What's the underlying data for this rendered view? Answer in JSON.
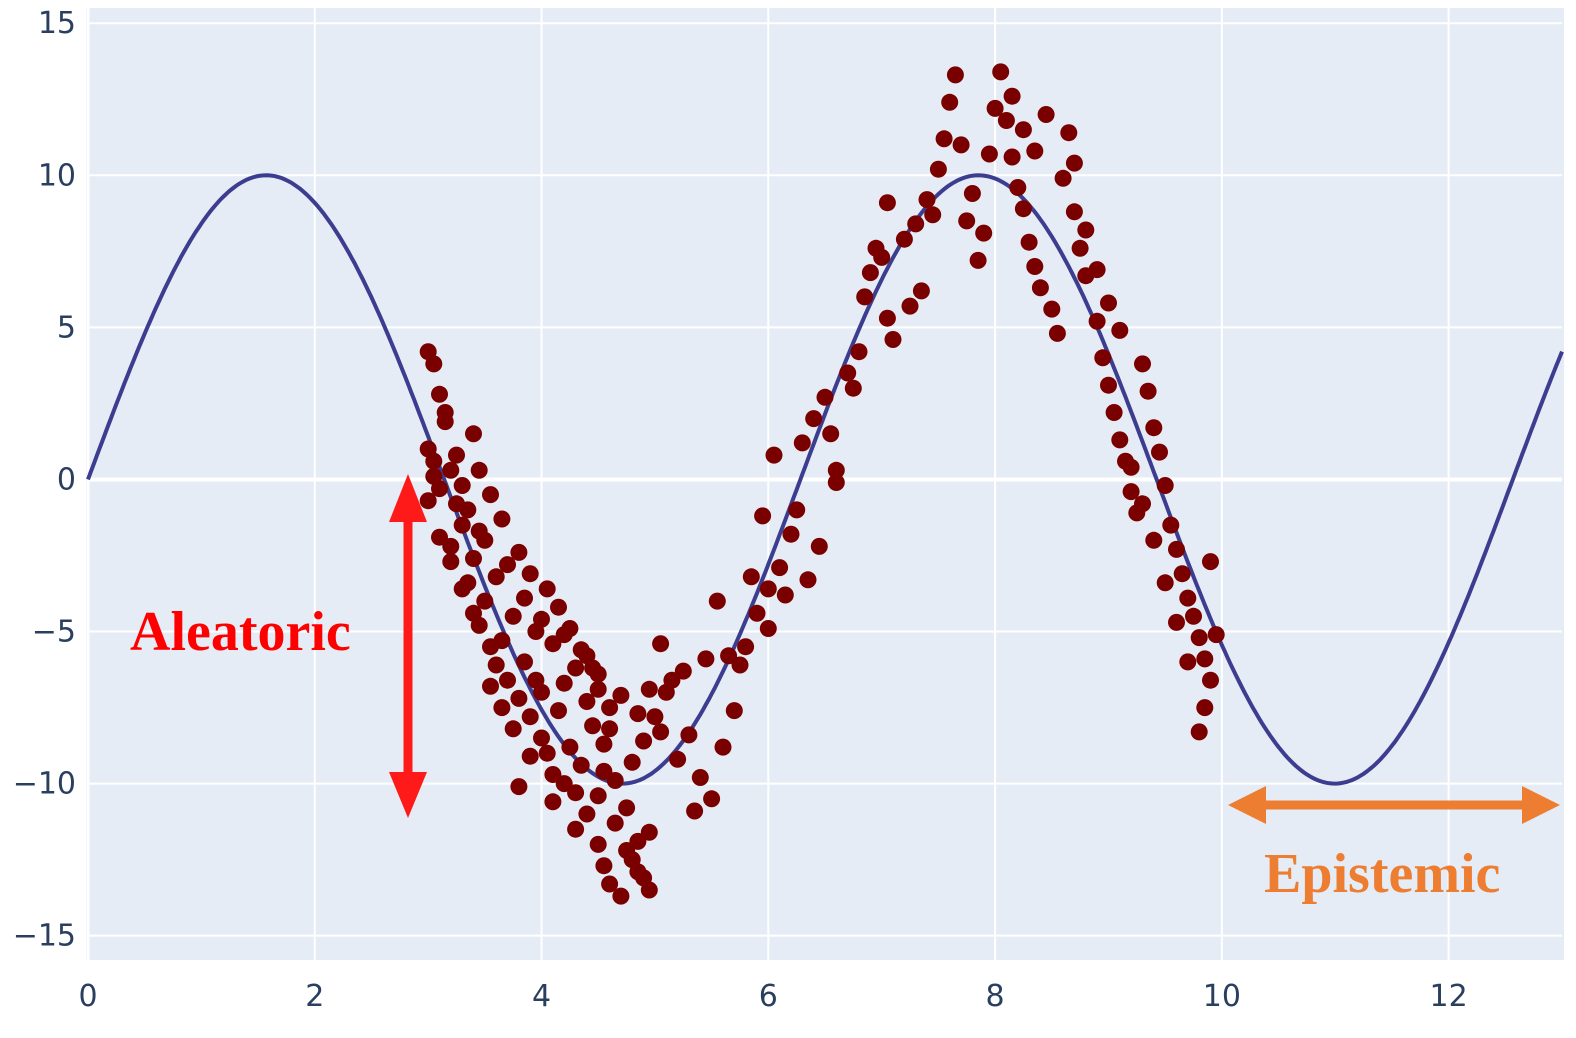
{
  "chart_data": {
    "type": "scatter",
    "title": "",
    "xlabel": "",
    "ylabel": "",
    "xlim": [
      0,
      13
    ],
    "ylim": [
      -15.8,
      15.5
    ],
    "x_ticks": [
      0,
      2,
      4,
      6,
      8,
      10,
      12
    ],
    "y_ticks": [
      15,
      10,
      5,
      0,
      -5,
      -10,
      -15
    ],
    "x_tick_labels": [
      "0",
      "2",
      "4",
      "6",
      "8",
      "10",
      "12"
    ],
    "y_tick_labels": [
      "15",
      "10",
      "5",
      "0",
      "−5",
      "−10",
      "−15"
    ],
    "grid": true,
    "legend": "none",
    "curve": {
      "function": "10*sin(x)",
      "x_range": [
        0,
        13
      ],
      "color": "#3d3d8f"
    },
    "scatter": {
      "color": "#7a0000",
      "x_range": [
        3,
        10
      ],
      "points": [
        [
          3.0,
          4.2
        ],
        [
          3.05,
          3.8
        ],
        [
          3.1,
          2.8
        ],
        [
          3.15,
          1.9
        ],
        [
          3.0,
          1.0
        ],
        [
          3.05,
          0.6
        ],
        [
          3.2,
          0.3
        ],
        [
          3.1,
          -0.3
        ],
        [
          3.25,
          -0.8
        ],
        [
          3.3,
          -1.5
        ],
        [
          3.2,
          -2.2
        ],
        [
          3.4,
          -2.6
        ],
        [
          3.35,
          -3.4
        ],
        [
          3.5,
          -4.0
        ],
        [
          3.45,
          -4.8
        ],
        [
          3.55,
          -5.5
        ],
        [
          3.6,
          -6.1
        ],
        [
          3.7,
          -6.6
        ],
        [
          3.8,
          -7.2
        ],
        [
          3.65,
          -7.5
        ],
        [
          3.9,
          -7.8
        ],
        [
          4.0,
          -8.5
        ],
        [
          4.05,
          -9.0
        ],
        [
          4.1,
          -9.7
        ],
        [
          4.2,
          -10.0
        ],
        [
          4.3,
          -10.3
        ],
        [
          4.4,
          -11.0
        ],
        [
          4.5,
          -12.0
        ],
        [
          4.55,
          -12.7
        ],
        [
          4.6,
          -13.3
        ],
        [
          4.7,
          -13.7
        ],
        [
          4.8,
          -12.5
        ],
        [
          4.9,
          -13.1
        ],
        [
          4.95,
          -13.5
        ],
        [
          4.85,
          -11.9
        ],
        [
          4.75,
          -10.8
        ],
        [
          4.65,
          -9.9
        ],
        [
          4.8,
          -9.3
        ],
        [
          4.9,
          -8.6
        ],
        [
          5.0,
          -7.8
        ],
        [
          5.1,
          -7.0
        ],
        [
          4.6,
          -7.5
        ],
        [
          4.5,
          -6.9
        ],
        [
          4.3,
          -6.2
        ],
        [
          4.1,
          -5.4
        ],
        [
          3.95,
          -5.0
        ],
        [
          3.75,
          -4.5
        ],
        [
          3.6,
          -3.2
        ],
        [
          3.5,
          -2.0
        ],
        [
          3.35,
          -1.0
        ],
        [
          3.25,
          0.8
        ],
        [
          3.4,
          1.5
        ],
        [
          3.15,
          2.2
        ],
        [
          3.3,
          -0.2
        ],
        [
          3.45,
          -1.7
        ],
        [
          3.7,
          -2.8
        ],
        [
          3.85,
          -3.9
        ],
        [
          4.0,
          -4.6
        ],
        [
          4.2,
          -5.1
        ],
        [
          4.4,
          -5.8
        ],
        [
          4.5,
          -6.4
        ],
        [
          4.7,
          -7.1
        ],
        [
          4.85,
          -7.7
        ],
        [
          5.05,
          -8.3
        ],
        [
          5.2,
          -9.2
        ],
        [
          5.3,
          -8.4
        ],
        [
          5.4,
          -9.8
        ],
        [
          5.5,
          -10.5
        ],
        [
          5.35,
          -10.9
        ],
        [
          5.6,
          -8.8
        ],
        [
          5.7,
          -7.6
        ],
        [
          5.8,
          -5.5
        ],
        [
          5.9,
          -4.4
        ],
        [
          6.0,
          -3.6
        ],
        [
          6.1,
          -2.9
        ],
        [
          6.2,
          -1.8
        ],
        [
          6.05,
          0.8
        ],
        [
          5.95,
          -1.2
        ],
        [
          6.3,
          1.2
        ],
        [
          6.4,
          2.0
        ],
        [
          6.5,
          2.7
        ],
        [
          6.55,
          1.5
        ],
        [
          6.6,
          0.3
        ],
        [
          6.7,
          3.5
        ],
        [
          6.8,
          4.2
        ],
        [
          6.85,
          6.0
        ],
        [
          6.9,
          6.8
        ],
        [
          7.0,
          7.3
        ],
        [
          7.05,
          5.3
        ],
        [
          7.1,
          4.6
        ],
        [
          7.2,
          7.9
        ],
        [
          7.3,
          8.4
        ],
        [
          7.4,
          9.2
        ],
        [
          7.5,
          10.2
        ],
        [
          7.55,
          11.2
        ],
        [
          7.6,
          12.4
        ],
        [
          7.65,
          13.3
        ],
        [
          7.7,
          11.0
        ],
        [
          7.45,
          8.7
        ],
        [
          7.35,
          6.2
        ],
        [
          7.25,
          5.7
        ],
        [
          7.8,
          9.4
        ],
        [
          7.9,
          8.1
        ],
        [
          8.0,
          12.2
        ],
        [
          8.05,
          13.4
        ],
        [
          8.1,
          11.8
        ],
        [
          8.15,
          10.6
        ],
        [
          8.2,
          9.6
        ],
        [
          8.25,
          8.9
        ],
        [
          8.3,
          7.8
        ],
        [
          8.35,
          7.0
        ],
        [
          8.4,
          6.3
        ],
        [
          8.5,
          5.6
        ],
        [
          8.55,
          4.8
        ],
        [
          8.6,
          9.9
        ],
        [
          8.7,
          8.8
        ],
        [
          8.75,
          7.6
        ],
        [
          8.8,
          6.7
        ],
        [
          8.9,
          5.2
        ],
        [
          8.95,
          4.0
        ],
        [
          9.0,
          3.1
        ],
        [
          9.05,
          2.2
        ],
        [
          9.1,
          1.3
        ],
        [
          9.15,
          0.6
        ],
        [
          9.2,
          -0.4
        ],
        [
          9.25,
          -1.1
        ],
        [
          9.3,
          3.8
        ],
        [
          9.35,
          2.9
        ],
        [
          9.4,
          1.7
        ],
        [
          9.45,
          0.9
        ],
        [
          9.5,
          -0.2
        ],
        [
          9.55,
          -1.5
        ],
        [
          9.6,
          -2.3
        ],
        [
          9.65,
          -3.1
        ],
        [
          9.7,
          -3.9
        ],
        [
          9.75,
          -4.5
        ],
        [
          9.8,
          -5.2
        ],
        [
          9.85,
          -5.9
        ],
        [
          9.9,
          -6.6
        ],
        [
          9.95,
          -5.1
        ],
        [
          9.9,
          -2.7
        ],
        [
          9.85,
          -7.5
        ],
        [
          9.8,
          -8.3
        ],
        [
          9.7,
          -6.0
        ],
        [
          9.6,
          -4.7
        ],
        [
          9.5,
          -3.4
        ],
        [
          9.4,
          -2.0
        ],
        [
          9.3,
          -0.8
        ],
        [
          9.2,
          0.4
        ],
        [
          9.1,
          4.9
        ],
        [
          9.0,
          5.8
        ],
        [
          8.9,
          6.9
        ],
        [
          8.8,
          8.2
        ],
        [
          8.7,
          10.4
        ],
        [
          8.65,
          11.4
        ],
        [
          8.45,
          12.0
        ],
        [
          8.35,
          10.8
        ],
        [
          8.25,
          11.5
        ],
        [
          8.15,
          12.6
        ],
        [
          7.95,
          10.7
        ],
        [
          7.85,
          7.2
        ],
        [
          7.75,
          8.5
        ],
        [
          7.05,
          9.1
        ],
        [
          6.95,
          7.6
        ],
        [
          6.75,
          3.0
        ],
        [
          6.6,
          -0.1
        ],
        [
          6.45,
          -2.2
        ],
        [
          6.35,
          -3.3
        ],
        [
          6.25,
          -1.0
        ],
        [
          6.15,
          -3.8
        ],
        [
          6.0,
          -4.9
        ],
        [
          5.85,
          -3.2
        ],
        [
          5.75,
          -6.1
        ],
        [
          5.65,
          -5.8
        ],
        [
          5.55,
          -4.0
        ],
        [
          5.45,
          -5.9
        ],
        [
          5.25,
          -6.3
        ],
        [
          5.15,
          -6.6
        ],
        [
          5.05,
          -5.4
        ],
        [
          4.95,
          -6.9
        ],
        [
          4.15,
          -7.6
        ],
        [
          4.25,
          -8.8
        ],
        [
          4.35,
          -9.4
        ],
        [
          4.45,
          -8.1
        ],
        [
          3.95,
          -6.6
        ],
        [
          3.85,
          -6.0
        ],
        [
          3.55,
          -6.8
        ],
        [
          3.75,
          -8.2
        ],
        [
          3.65,
          -5.3
        ],
        [
          3.4,
          -4.4
        ],
        [
          3.3,
          -3.6
        ],
        [
          3.2,
          -2.7
        ],
        [
          3.1,
          -1.9
        ],
        [
          3.0,
          -0.7
        ],
        [
          3.05,
          0.1
        ],
        [
          3.45,
          0.3
        ],
        [
          3.55,
          -0.5
        ],
        [
          3.65,
          -1.3
        ],
        [
          3.8,
          -2.4
        ],
        [
          3.9,
          -3.1
        ],
        [
          4.05,
          -3.6
        ],
        [
          4.15,
          -4.2
        ],
        [
          4.25,
          -4.9
        ],
        [
          4.35,
          -5.6
        ],
        [
          4.45,
          -6.2
        ],
        [
          4.55,
          -8.7
        ],
        [
          4.65,
          -11.3
        ],
        [
          4.75,
          -12.2
        ],
        [
          4.85,
          -12.9
        ],
        [
          4.95,
          -11.6
        ],
        [
          4.5,
          -10.4
        ],
        [
          4.6,
          -8.2
        ],
        [
          4.4,
          -7.3
        ],
        [
          4.2,
          -6.7
        ],
        [
          4.0,
          -7.0
        ],
        [
          3.9,
          -9.1
        ],
        [
          3.8,
          -10.1
        ],
        [
          4.1,
          -10.6
        ],
        [
          4.3,
          -11.5
        ],
        [
          4.55,
          -9.6
        ]
      ]
    },
    "annotations": [
      {
        "text": "Aleatoric",
        "color": "#ff0000"
      },
      {
        "text": "Epistemic",
        "color": "#ed7d31"
      }
    ]
  }
}
